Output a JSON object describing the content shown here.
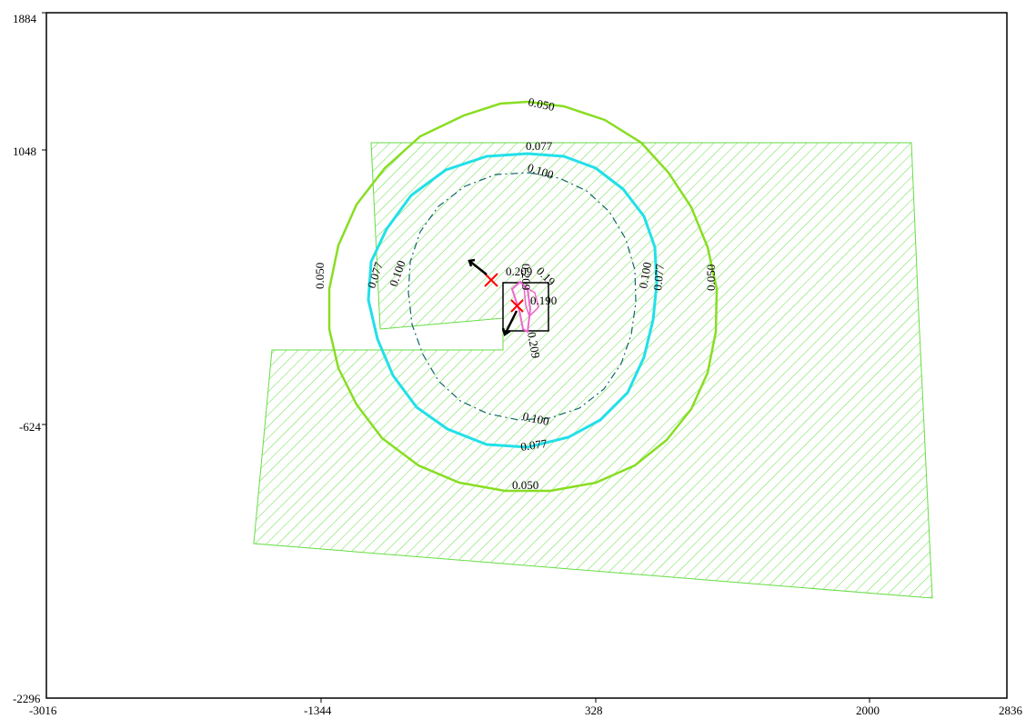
{
  "plot": {
    "x_ticks": [
      "-3016",
      "-1344",
      "328",
      "2000",
      "2836"
    ],
    "y_ticks": [
      "1884",
      "1048",
      "-624",
      "-2296"
    ]
  },
  "contours": {
    "c050": "0.050",
    "c077": "0.077",
    "c100": "0.100",
    "c190": "0.190",
    "c209": "0.209",
    "c_overlap": "0.209",
    "c_small": "0.19"
  },
  "colors": {
    "hatch": "#66dd44",
    "contour_050": "#88dd22",
    "contour_077": "#22e0e8",
    "contour_100": "#116666",
    "contour_inner": "#ee66cc",
    "marker": "#ff0000"
  },
  "icons": {
    "source_marker": "red-x-marker",
    "wind_arrow": "arrow-icon"
  }
}
